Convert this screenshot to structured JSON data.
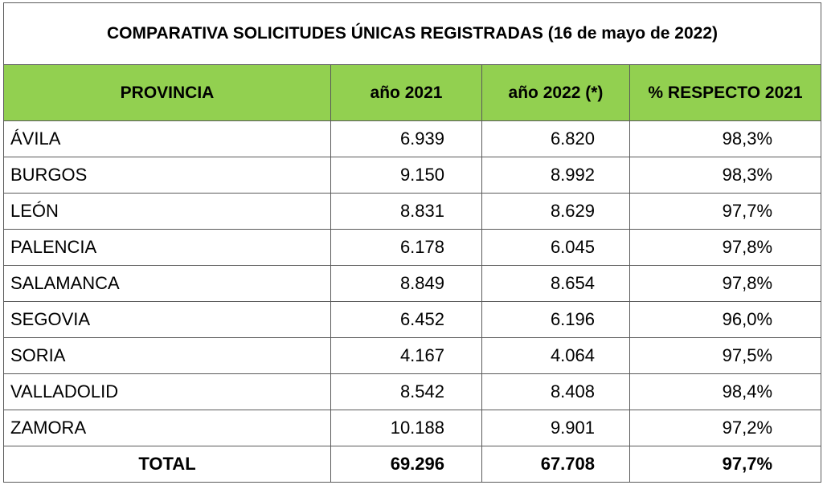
{
  "title": "COMPARATIVA SOLICITUDES ÚNICAS REGISTRADAS (16 de mayo de 2022)",
  "headers": [
    "PROVINCIA",
    "año 2021",
    "año 2022 (*)",
    "% RESPECTO 2021"
  ],
  "rows": [
    [
      "ÁVILA",
      "6.939",
      "6.820",
      "98,3%"
    ],
    [
      "BURGOS",
      "9.150",
      "8.992",
      "98,3%"
    ],
    [
      "LEÓN",
      "8.831",
      "8.629",
      "97,7%"
    ],
    [
      "PALENCIA",
      "6.178",
      "6.045",
      "97,8%"
    ],
    [
      "SALAMANCA",
      "8.849",
      "8.654",
      "97,8%"
    ],
    [
      "SEGOVIA",
      "6.452",
      "6.196",
      "96,0%"
    ],
    [
      "SORIA",
      "4.167",
      "4.064",
      "97,5%"
    ],
    [
      "VALLADOLID",
      "8.542",
      "8.408",
      "98,4%"
    ],
    [
      "ZAMORA",
      "10.188",
      "9.901",
      "97,2%"
    ]
  ],
  "total": [
    "TOTAL",
    "69.296",
    "67.708",
    "97,7%"
  ],
  "colors": {
    "header_bg": "#92D050"
  }
}
